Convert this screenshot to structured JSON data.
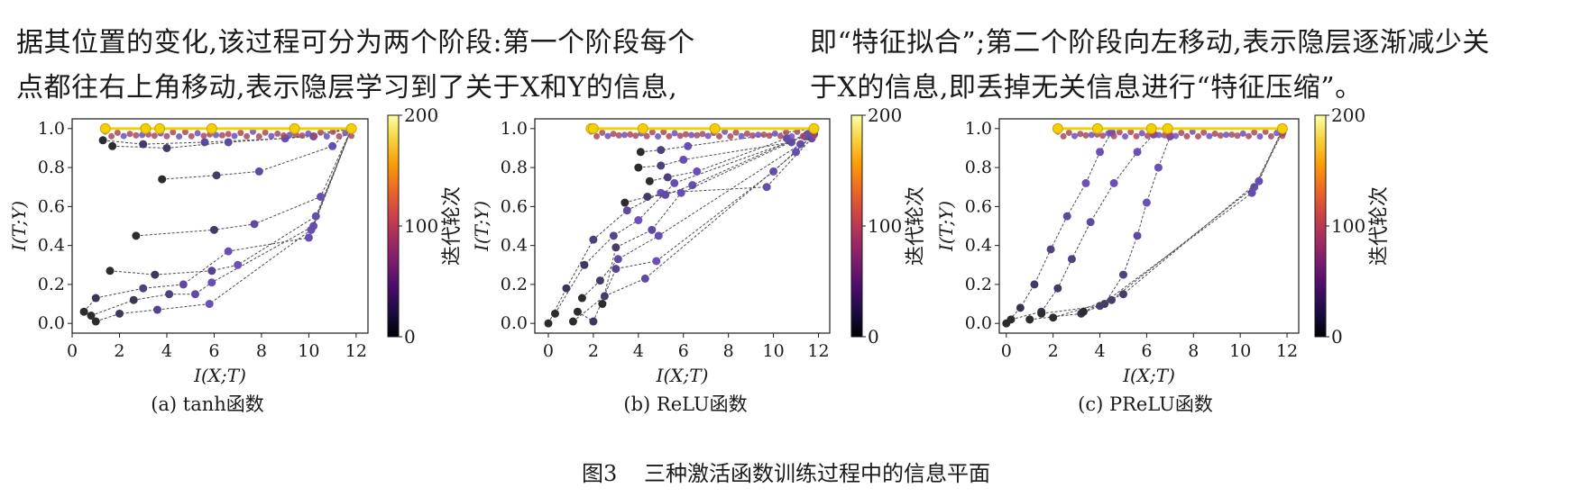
{
  "paragraph": {
    "left_lines": [
      "据其位置的变化,该过程可分为两个阶段:第一个阶段每个",
      "点都往右上角移动,表示隐层学习到了关于X和Y的信息,"
    ],
    "right_lines": [
      "即“特征拟合”;第二个阶段向左移动,表示隐层逐渐减少关",
      "于X的信息,即丢掉无关信息进行“特征压缩”。"
    ]
  },
  "figure": {
    "number": "图3",
    "caption": "三种激活函数训练过程中的信息平面"
  },
  "colors": {
    "cmap": [
      "#000004",
      "#1b0c41",
      "#4a0c6b",
      "#781c6d",
      "#a52c60",
      "#cf4446",
      "#ed6925",
      "#fb9b06",
      "#f7d13d",
      "#fcffa4"
    ],
    "early_point": "#2b2b30",
    "mid_point": "#6a50b8",
    "late_point": "#f5d000"
  },
  "chart_data": [
    {
      "type": "scatter",
      "subcaption": "(a) tanh函数",
      "xlabel": "I(X;T)",
      "ylabel": "I(T;Y)",
      "xlim": [
        0,
        12.5
      ],
      "ylim": [
        -0.05,
        1.05
      ],
      "xticks": [
        "0",
        "2",
        "4",
        "6",
        "8",
        "10",
        "12"
      ],
      "yticks": [
        "0.0",
        "0.2",
        "0.4",
        "0.6",
        "0.8",
        "1.0"
      ],
      "colorbar": {
        "label": "迭代轮次",
        "min": "0",
        "mid": "100",
        "max": "200"
      },
      "trajectories": [
        [
          [
            0.5,
            0.06
          ],
          [
            1.0,
            0.13
          ],
          [
            3.0,
            0.18
          ],
          [
            4.7,
            0.2
          ],
          [
            6.6,
            0.37
          ],
          [
            10.0,
            0.44
          ],
          [
            11.8,
            1.0
          ]
        ],
        [
          [
            0.8,
            0.04
          ],
          [
            2.6,
            0.12
          ],
          [
            4.1,
            0.15
          ],
          [
            5.2,
            0.15
          ],
          [
            5.9,
            0.21
          ],
          [
            10.2,
            0.5
          ],
          [
            11.8,
            1.0
          ]
        ],
        [
          [
            1.0,
            0.01
          ],
          [
            2.0,
            0.05
          ],
          [
            3.6,
            0.07
          ],
          [
            5.8,
            0.1
          ],
          [
            10.1,
            0.48
          ],
          [
            11.8,
            1.0
          ]
        ],
        [
          [
            1.6,
            0.27
          ],
          [
            3.5,
            0.25
          ],
          [
            5.9,
            0.27
          ],
          [
            7.0,
            0.3
          ],
          [
            10.3,
            0.55
          ],
          [
            11.8,
            1.0
          ]
        ],
        [
          [
            2.7,
            0.45
          ],
          [
            6.0,
            0.48
          ],
          [
            7.7,
            0.51
          ],
          [
            10.5,
            0.65
          ],
          [
            11.8,
            1.0
          ]
        ],
        [
          [
            3.8,
            0.74
          ],
          [
            6.1,
            0.76
          ],
          [
            7.9,
            0.78
          ],
          [
            11.0,
            0.91
          ],
          [
            11.8,
            1.0
          ]
        ],
        [
          [
            1.3,
            0.94
          ],
          [
            3.0,
            0.92
          ],
          [
            5.6,
            0.93
          ],
          [
            9.0,
            0.95
          ],
          [
            11.8,
            1.0
          ]
        ],
        [
          [
            1.7,
            0.91
          ],
          [
            4.0,
            0.9
          ],
          [
            6.6,
            0.93
          ],
          [
            10.2,
            0.96
          ],
          [
            11.8,
            1.0
          ]
        ]
      ],
      "final_points": [
        [
          1.4,
          1.0
        ],
        [
          3.1,
          1.0
        ],
        [
          3.7,
          1.0
        ],
        [
          5.9,
          1.0
        ],
        [
          9.4,
          1.0
        ],
        [
          11.8,
          1.0
        ]
      ]
    },
    {
      "type": "scatter",
      "subcaption": "(b) ReLU函数",
      "xlabel": "I(X;T)",
      "ylabel": "I(T;Y)",
      "xlim": [
        -0.6,
        12.5
      ],
      "ylim": [
        -0.05,
        1.05
      ],
      "xticks": [
        "0",
        "2",
        "4",
        "6",
        "8",
        "10",
        "12"
      ],
      "yticks": [
        "0.0",
        "0.2",
        "0.4",
        "0.6",
        "0.8",
        "1.0"
      ],
      "colorbar": {
        "label": "迭代轮次",
        "min": "0",
        "mid": "100",
        "max": "200"
      },
      "trajectories": [
        [
          [
            0.0,
            0.0
          ],
          [
            0.8,
            0.18
          ],
          [
            2.0,
            0.43
          ],
          [
            3.5,
            0.58
          ],
          [
            5.0,
            0.67
          ],
          [
            9.7,
            0.7
          ],
          [
            11.7,
            0.95
          ]
        ],
        [
          [
            0.3,
            0.05
          ],
          [
            1.6,
            0.3
          ],
          [
            2.9,
            0.45
          ],
          [
            4.0,
            0.53
          ],
          [
            5.6,
            0.72
          ],
          [
            11.4,
            0.96
          ]
        ],
        [
          [
            1.3,
            0.06
          ],
          [
            2.0,
            0.01
          ],
          [
            3.0,
            0.28
          ],
          [
            4.8,
            0.32
          ],
          [
            10.0,
            0.78
          ],
          [
            11.8,
            0.97
          ]
        ],
        [
          [
            1.1,
            0.01
          ],
          [
            2.5,
            0.14
          ],
          [
            4.3,
            0.23
          ],
          [
            11.0,
            0.88
          ],
          [
            11.8,
            0.98
          ]
        ],
        [
          [
            1.5,
            0.13
          ],
          [
            2.3,
            0.22
          ],
          [
            3.1,
            0.33
          ],
          [
            4.9,
            0.45
          ],
          [
            11.2,
            0.92
          ]
        ],
        [
          [
            3.4,
            0.62
          ],
          [
            4.4,
            0.65
          ],
          [
            5.2,
            0.66
          ],
          [
            6.4,
            0.71
          ],
          [
            11.8,
            0.99
          ]
        ],
        [
          [
            4.0,
            0.8
          ],
          [
            5.0,
            0.81
          ],
          [
            6.0,
            0.84
          ],
          [
            10.8,
            0.93
          ]
        ],
        [
          [
            4.1,
            0.88
          ],
          [
            5.0,
            0.89
          ],
          [
            6.2,
            0.91
          ],
          [
            11.8,
            1.0
          ]
        ],
        [
          [
            4.5,
            0.73
          ],
          [
            5.3,
            0.75
          ],
          [
            6.6,
            0.78
          ],
          [
            10.6,
            0.95
          ]
        ],
        [
          [
            2.4,
            0.1
          ],
          [
            3.0,
            0.39
          ],
          [
            4.6,
            0.48
          ],
          [
            5.9,
            0.67
          ],
          [
            11.5,
            0.97
          ]
        ]
      ],
      "final_points": [
        [
          1.9,
          1.0
        ],
        [
          2.0,
          1.0
        ],
        [
          4.2,
          1.0
        ],
        [
          7.4,
          1.0
        ],
        [
          11.8,
          1.0
        ]
      ]
    },
    {
      "type": "scatter",
      "subcaption": "(c) PReLU函数",
      "xlabel": "I(X;T)",
      "ylabel": "I(T;Y)",
      "xlim": [
        -0.3,
        12.5
      ],
      "ylim": [
        -0.05,
        1.05
      ],
      "xticks": [
        "0",
        "2",
        "4",
        "6",
        "8",
        "10",
        "12"
      ],
      "yticks": [
        "0.0",
        "0.2",
        "0.4",
        "0.6",
        "0.8",
        "1.0"
      ],
      "colorbar": {
        "label": "迭代轮次",
        "min": "0",
        "mid": "100",
        "max": "200"
      },
      "trajectories": [
        [
          [
            0.0,
            0.0
          ],
          [
            0.6,
            0.08
          ],
          [
            1.2,
            0.2
          ],
          [
            1.9,
            0.38
          ],
          [
            2.6,
            0.55
          ],
          [
            3.4,
            0.72
          ],
          [
            4.0,
            0.88
          ],
          [
            4.5,
            0.98
          ]
        ],
        [
          [
            0.2,
            0.02
          ],
          [
            1.5,
            0.06
          ],
          [
            2.2,
            0.18
          ],
          [
            2.8,
            0.33
          ],
          [
            3.6,
            0.52
          ],
          [
            4.6,
            0.72
          ],
          [
            5.6,
            0.88
          ],
          [
            6.3,
            0.97
          ]
        ],
        [
          [
            1.0,
            0.02
          ],
          [
            3.2,
            0.05
          ],
          [
            4.2,
            0.1
          ],
          [
            5.0,
            0.25
          ],
          [
            5.6,
            0.45
          ],
          [
            6.0,
            0.62
          ],
          [
            6.5,
            0.8
          ],
          [
            7.0,
            0.96
          ]
        ],
        [
          [
            1.5,
            0.05
          ],
          [
            4.0,
            0.09
          ],
          [
            10.5,
            0.67
          ],
          [
            11.8,
            0.98
          ]
        ],
        [
          [
            2.0,
            0.03
          ],
          [
            4.5,
            0.12
          ],
          [
            10.6,
            0.7
          ],
          [
            11.8,
            0.99
          ]
        ],
        [
          [
            3.3,
            0.06
          ],
          [
            5.0,
            0.15
          ],
          [
            10.8,
            0.73
          ],
          [
            11.8,
            1.0
          ]
        ]
      ],
      "final_points": [
        [
          2.2,
          1.0
        ],
        [
          3.9,
          1.0
        ],
        [
          6.2,
          1.0
        ],
        [
          6.9,
          1.0
        ],
        [
          11.8,
          1.0
        ]
      ]
    }
  ]
}
